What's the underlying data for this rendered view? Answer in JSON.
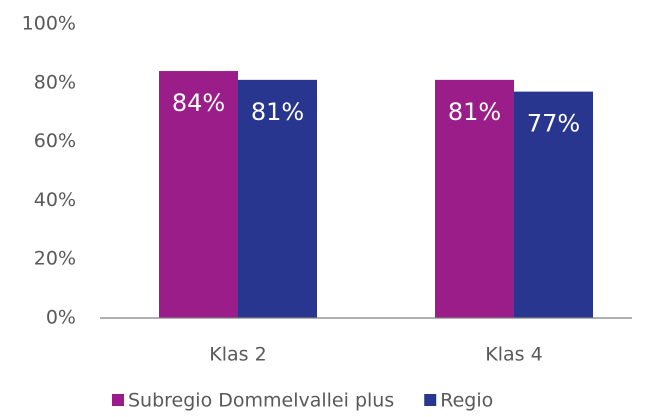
{
  "chart_data": {
    "type": "bar",
    "categories": [
      "Klas 2",
      "Klas 4"
    ],
    "series": [
      {
        "name": "Subregio Dommelvallei plus",
        "color": "#9b1d89",
        "values": [
          84,
          81
        ],
        "value_labels": [
          "84%",
          "81%"
        ]
      },
      {
        "name": "Regio",
        "color": "#29368f",
        "values": [
          81,
          77
        ],
        "value_labels": [
          "81%",
          "77%"
        ]
      }
    ],
    "ylim": [
      0,
      100
    ],
    "yticks": [
      {
        "value": 0,
        "label": "0%"
      },
      {
        "value": 20,
        "label": "20%"
      },
      {
        "value": 40,
        "label": "40%"
      },
      {
        "value": 60,
        "label": "60%"
      },
      {
        "value": 80,
        "label": "80%"
      },
      {
        "value": 100,
        "label": "100%"
      }
    ],
    "grid": false,
    "legend": "bottom"
  }
}
